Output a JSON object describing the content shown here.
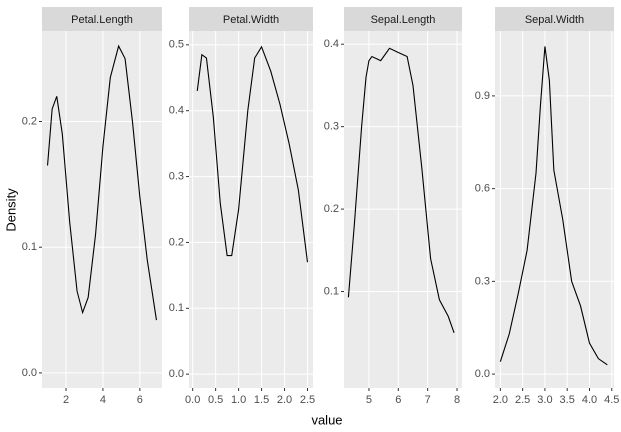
{
  "axis_labels": {
    "x": "value",
    "y": "Density"
  },
  "chart_data": [
    {
      "type": "line",
      "title": "Petal.Length",
      "color": "#000000",
      "x": [
        1.0,
        1.25,
        1.5,
        1.8,
        2.2,
        2.6,
        2.9,
        3.2,
        3.6,
        4.0,
        4.4,
        4.85,
        5.2,
        5.6,
        6.0,
        6.4,
        6.9
      ],
      "values": [
        0.165,
        0.21,
        0.22,
        0.19,
        0.12,
        0.065,
        0.048,
        0.06,
        0.11,
        0.18,
        0.235,
        0.26,
        0.25,
        0.2,
        0.14,
        0.09,
        0.042
      ],
      "xlim": [
        0.7,
        7.2
      ],
      "xticks": [
        2,
        4,
        6
      ],
      "ylim": [
        -0.012,
        0.272
      ],
      "yticks": [
        {
          "value": 0,
          "label": "0.0"
        },
        0.1,
        0.2
      ]
    },
    {
      "type": "line",
      "title": "Petal.Width",
      "color": "#000000",
      "x": [
        0.1,
        0.2,
        0.3,
        0.45,
        0.6,
        0.75,
        0.85,
        1.0,
        1.2,
        1.35,
        1.5,
        1.7,
        1.9,
        2.1,
        2.3,
        2.5
      ],
      "values": [
        0.43,
        0.485,
        0.48,
        0.39,
        0.26,
        0.18,
        0.18,
        0.25,
        0.4,
        0.48,
        0.497,
        0.46,
        0.41,
        0.35,
        0.28,
        0.17
      ],
      "xlim": [
        -0.08,
        2.62
      ],
      "xticks": [
        {
          "value": 0,
          "label": "0.0"
        },
        0.5,
        {
          "value": 1,
          "label": "1.0"
        },
        1.5,
        {
          "value": 2,
          "label": "2.0"
        },
        2.5
      ],
      "ylim": [
        -0.021,
        0.521
      ],
      "yticks": [
        {
          "value": 0,
          "label": "0.0"
        },
        0.1,
        0.2,
        0.3,
        0.4,
        0.5
      ]
    },
    {
      "type": "line",
      "title": "Sepal.Length",
      "color": "#000000",
      "x": [
        4.3,
        4.5,
        4.75,
        4.9,
        5.0,
        5.1,
        5.4,
        5.7,
        6.0,
        6.3,
        6.5,
        6.8,
        7.1,
        7.4,
        7.7,
        7.9
      ],
      "values": [
        0.093,
        0.18,
        0.3,
        0.36,
        0.38,
        0.385,
        0.38,
        0.395,
        0.39,
        0.385,
        0.35,
        0.25,
        0.14,
        0.09,
        0.07,
        0.05
      ],
      "xlim": [
        4.15,
        8.17
      ],
      "xticks": [
        5,
        6,
        7,
        8
      ],
      "ylim": [
        -0.017,
        0.416
      ],
      "yticks": [
        0.1,
        0.2,
        0.3,
        0.4
      ]
    },
    {
      "type": "line",
      "title": "Sepal.Width",
      "color": "#000000",
      "x": [
        2.0,
        2.2,
        2.4,
        2.6,
        2.8,
        2.9,
        3.0,
        3.1,
        3.2,
        3.4,
        3.6,
        3.8,
        4.0,
        4.2,
        4.4
      ],
      "values": [
        0.04,
        0.13,
        0.26,
        0.4,
        0.65,
        0.87,
        1.06,
        0.95,
        0.66,
        0.5,
        0.3,
        0.22,
        0.1,
        0.05,
        0.03
      ],
      "xlim": [
        1.88,
        4.55
      ],
      "xticks": [
        {
          "value": 2,
          "label": "2.0"
        },
        2.5,
        {
          "value": 3,
          "label": "3.0"
        },
        3.5,
        {
          "value": 4,
          "label": "4.0"
        },
        4.5
      ],
      "ylim": [
        -0.045,
        1.11
      ],
      "yticks": [
        {
          "value": 0,
          "label": "0.0"
        },
        0.3,
        0.6,
        0.9
      ]
    }
  ]
}
